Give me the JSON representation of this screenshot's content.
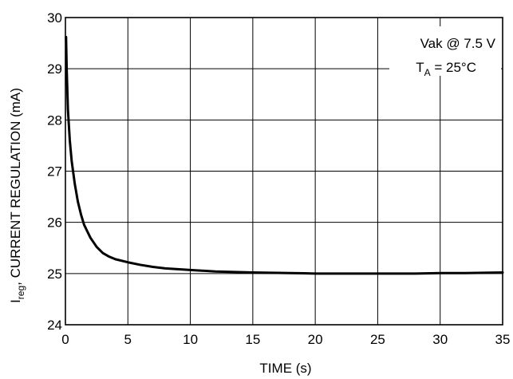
{
  "chart_data": {
    "type": "line",
    "title": "",
    "xlabel": "TIME (s)",
    "ylabel": {
      "main": "I",
      "sub": "reg",
      "rest": ", CURRENT REGULATION (mA)"
    },
    "xlim": [
      0,
      35
    ],
    "ylim": [
      24,
      30
    ],
    "x_ticks": [
      0,
      5,
      10,
      15,
      20,
      25,
      30,
      35
    ],
    "y_ticks": [
      24,
      25,
      26,
      27,
      28,
      29,
      30
    ],
    "grid": true,
    "annotations": {
      "line1": "Vak @ 7.5 V",
      "line2_main": "T",
      "line2_sub": "A",
      "line2_rest": " = 25°C"
    },
    "series": [
      {
        "color": "#000000",
        "x": [
          0.05,
          0.1,
          0.2,
          0.35,
          0.5,
          0.75,
          1.0,
          1.25,
          1.5,
          2.0,
          2.5,
          3.0,
          3.5,
          4.0,
          5.0,
          6.0,
          7.0,
          8.0,
          10.0,
          12.0,
          15.0,
          18.0,
          20.0,
          22.0,
          25.0,
          28.0,
          30.0,
          32.0,
          35.0
        ],
        "y": [
          29.62,
          29.0,
          28.2,
          27.6,
          27.2,
          26.75,
          26.4,
          26.15,
          25.95,
          25.7,
          25.52,
          25.4,
          25.33,
          25.28,
          25.22,
          25.17,
          25.13,
          25.1,
          25.07,
          25.04,
          25.02,
          25.01,
          25.0,
          25.0,
          25.0,
          25.0,
          25.01,
          25.01,
          25.02
        ]
      }
    ]
  }
}
